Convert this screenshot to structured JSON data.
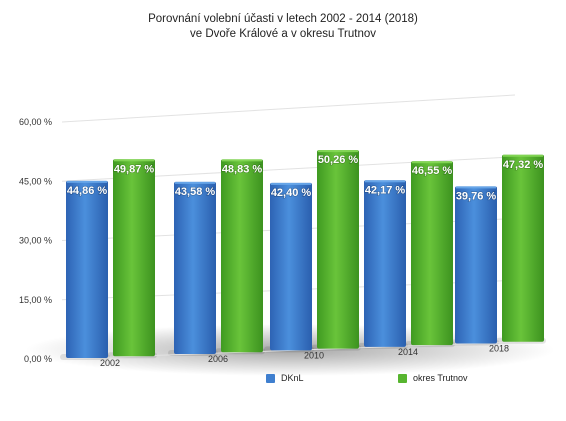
{
  "chart_data": {
    "type": "bar",
    "title": "Porovnání volební účasti v letech 2002 - 2014 (2018)",
    "subtitle": "ve Dvoře Králové a v okresu Trutnov",
    "categories": [
      "2002",
      "2006",
      "2010",
      "2014",
      "2018"
    ],
    "series": [
      {
        "name": "DKnL",
        "color": "#3f7fcf",
        "values": [
          44.86,
          43.58,
          42.4,
          42.17,
          39.76
        ],
        "labels": [
          "44,86 %",
          "43,58 %",
          "42,40 %",
          "42,17 %",
          "39,76 %"
        ]
      },
      {
        "name": "okres Trutnov",
        "color": "#57b52f",
        "values": [
          49.87,
          48.83,
          50.26,
          46.55,
          47.32
        ],
        "labels": [
          "49,87 %",
          "48,83 %",
          "50,26 %",
          "46,55 %",
          "47,32 %"
        ]
      }
    ],
    "ylim": [
      0,
      60
    ],
    "yticks": [
      0,
      15,
      30,
      45,
      60
    ],
    "ytick_labels": [
      "0,00 %",
      "15,00 %",
      "30,00 %",
      "45,00 %",
      "60,00 %"
    ],
    "grid": true,
    "legend_position": "bottom"
  }
}
